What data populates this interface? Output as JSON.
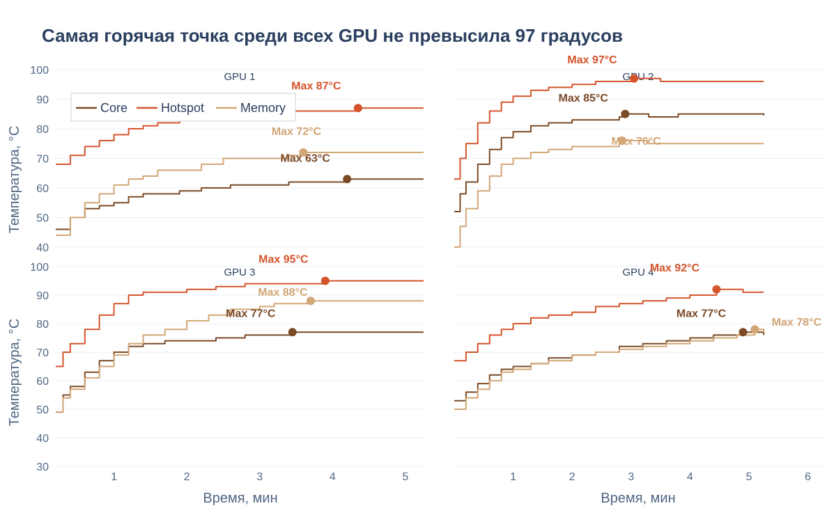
{
  "title": "Самая горячая точка среди всех GPU не превысила 97 градусов",
  "y_axis_title": "Температура, °C",
  "x_axis_title": "Время, мин",
  "colors": {
    "Core": "#7b4a26",
    "Hotspot": "#d4542b",
    "Memory": "#d2a676"
  },
  "legend": [
    "Core",
    "Hotspot",
    "Memory"
  ],
  "chart_data": [
    {
      "type": "line",
      "panel": "GPU 1",
      "xlim": [
        0.2,
        5.25
      ],
      "ylim": [
        40,
        100
      ],
      "x_ticks": [
        1,
        2,
        3,
        4,
        5
      ],
      "y_ticks": [
        40,
        50,
        60,
        70,
        80,
        90,
        100
      ],
      "series": [
        {
          "name": "Core",
          "points": [
            [
              0.2,
              46
            ],
            [
              0.4,
              50
            ],
            [
              0.6,
              53
            ],
            [
              0.8,
              54
            ],
            [
              1.0,
              55
            ],
            [
              1.2,
              57
            ],
            [
              1.4,
              58
            ],
            [
              1.6,
              58
            ],
            [
              1.9,
              59
            ],
            [
              2.2,
              60
            ],
            [
              2.6,
              61
            ],
            [
              3.0,
              61
            ],
            [
              3.4,
              62
            ],
            [
              3.8,
              62
            ],
            [
              4.2,
              63
            ],
            [
              4.6,
              63
            ],
            [
              5.0,
              63
            ],
            [
              5.25,
              63
            ]
          ],
          "max": {
            "x": 4.2,
            "y": 63,
            "label": "Max 63°C"
          }
        },
        {
          "name": "Hotspot",
          "points": [
            [
              0.2,
              68
            ],
            [
              0.4,
              71
            ],
            [
              0.6,
              74
            ],
            [
              0.8,
              76
            ],
            [
              1.0,
              78
            ],
            [
              1.2,
              80
            ],
            [
              1.4,
              81
            ],
            [
              1.6,
              82
            ],
            [
              1.9,
              83
            ],
            [
              2.2,
              84
            ],
            [
              2.6,
              85
            ],
            [
              3.0,
              85
            ],
            [
              3.4,
              86
            ],
            [
              3.8,
              86
            ],
            [
              4.2,
              86
            ],
            [
              4.35,
              87
            ],
            [
              4.6,
              87
            ],
            [
              5.0,
              87
            ],
            [
              5.25,
              87
            ]
          ],
          "max": {
            "x": 4.35,
            "y": 87,
            "label": "Max 87°C"
          }
        },
        {
          "name": "Memory",
          "points": [
            [
              0.2,
              44
            ],
            [
              0.4,
              50
            ],
            [
              0.6,
              55
            ],
            [
              0.8,
              58
            ],
            [
              1.0,
              61
            ],
            [
              1.2,
              63
            ],
            [
              1.4,
              64
            ],
            [
              1.6,
              66
            ],
            [
              1.9,
              66
            ],
            [
              2.2,
              68
            ],
            [
              2.5,
              70
            ],
            [
              3.0,
              70
            ],
            [
              3.4,
              71
            ],
            [
              3.6,
              72
            ],
            [
              4.0,
              72
            ],
            [
              4.5,
              72
            ],
            [
              5.0,
              72
            ],
            [
              5.25,
              72
            ]
          ],
          "max": {
            "x": 3.6,
            "y": 72,
            "label": "Max 72°C"
          }
        }
      ]
    },
    {
      "type": "line",
      "panel": "GPU 2",
      "xlim": [
        0.0,
        6.3
      ],
      "ylim": [
        40,
        100
      ],
      "x_ticks": [
        1,
        2,
        3,
        4,
        5,
        6
      ],
      "y_ticks": [
        40,
        50,
        60,
        70,
        80,
        90,
        100
      ],
      "series": [
        {
          "name": "Core",
          "points": [
            [
              0.0,
              52
            ],
            [
              0.1,
              58
            ],
            [
              0.2,
              62
            ],
            [
              0.4,
              68
            ],
            [
              0.6,
              73
            ],
            [
              0.8,
              77
            ],
            [
              1.0,
              79
            ],
            [
              1.3,
              81
            ],
            [
              1.6,
              82
            ],
            [
              2.0,
              83
            ],
            [
              2.4,
              83
            ],
            [
              2.8,
              84
            ],
            [
              2.9,
              85
            ],
            [
              3.3,
              84
            ],
            [
              3.8,
              85
            ],
            [
              4.5,
              85
            ],
            [
              5.0,
              85
            ],
            [
              5.25,
              84.5
            ]
          ],
          "max": {
            "x": 2.9,
            "y": 85,
            "label": "Max 85°C"
          }
        },
        {
          "name": "Hotspot",
          "points": [
            [
              0.0,
              63
            ],
            [
              0.1,
              70
            ],
            [
              0.2,
              75
            ],
            [
              0.4,
              82
            ],
            [
              0.6,
              86
            ],
            [
              0.8,
              89
            ],
            [
              1.0,
              91
            ],
            [
              1.3,
              93
            ],
            [
              1.6,
              94
            ],
            [
              2.0,
              95
            ],
            [
              2.4,
              96
            ],
            [
              2.8,
              96
            ],
            [
              3.05,
              97
            ],
            [
              3.5,
              96
            ],
            [
              4.0,
              96
            ],
            [
              4.5,
              96
            ],
            [
              5.0,
              96
            ],
            [
              5.25,
              96
            ]
          ],
          "max": {
            "x": 3.05,
            "y": 97,
            "label": "Max 97°C"
          }
        },
        {
          "name": "Memory",
          "points": [
            [
              0.0,
              40
            ],
            [
              0.1,
              47
            ],
            [
              0.2,
              53
            ],
            [
              0.4,
              59
            ],
            [
              0.6,
              64
            ],
            [
              0.8,
              68
            ],
            [
              1.0,
              70
            ],
            [
              1.3,
              72
            ],
            [
              1.6,
              73
            ],
            [
              2.0,
              74
            ],
            [
              2.4,
              74
            ],
            [
              2.8,
              75
            ],
            [
              2.85,
              76
            ],
            [
              3.3,
              75
            ],
            [
              3.8,
              75
            ],
            [
              4.5,
              75
            ],
            [
              5.0,
              75
            ],
            [
              5.25,
              75
            ]
          ],
          "max": {
            "x": 2.85,
            "y": 76,
            "label": "Max 76°C"
          }
        }
      ]
    },
    {
      "type": "line",
      "panel": "GPU 3",
      "xlim": [
        0.2,
        5.25
      ],
      "ylim": [
        30,
        100
      ],
      "x_ticks": [
        1,
        2,
        3,
        4,
        5
      ],
      "y_ticks": [
        30,
        40,
        50,
        60,
        70,
        80,
        90,
        100
      ],
      "series": [
        {
          "name": "Core",
          "points": [
            [
              0.2,
              49
            ],
            [
              0.3,
              55
            ],
            [
              0.4,
              58
            ],
            [
              0.6,
              63
            ],
            [
              0.8,
              67
            ],
            [
              1.0,
              70
            ],
            [
              1.2,
              72
            ],
            [
              1.4,
              73
            ],
            [
              1.7,
              74
            ],
            [
              2.0,
              74
            ],
            [
              2.4,
              75
            ],
            [
              2.8,
              76
            ],
            [
              3.2,
              76
            ],
            [
              3.45,
              77
            ],
            [
              4.0,
              77
            ],
            [
              4.5,
              77
            ],
            [
              5.0,
              77
            ],
            [
              5.25,
              77
            ]
          ],
          "max": {
            "x": 3.45,
            "y": 77,
            "label": "Max 77°C"
          }
        },
        {
          "name": "Hotspot",
          "points": [
            [
              0.2,
              65
            ],
            [
              0.3,
              70
            ],
            [
              0.4,
              73
            ],
            [
              0.6,
              78
            ],
            [
              0.8,
              83
            ],
            [
              1.0,
              87
            ],
            [
              1.2,
              90
            ],
            [
              1.4,
              91
            ],
            [
              1.7,
              91
            ],
            [
              2.0,
              92
            ],
            [
              2.4,
              93
            ],
            [
              2.8,
              94
            ],
            [
              3.2,
              94
            ],
            [
              3.6,
              94
            ],
            [
              3.9,
              95
            ],
            [
              4.4,
              95
            ],
            [
              5.0,
              95
            ],
            [
              5.25,
              95
            ]
          ],
          "max": {
            "x": 3.9,
            "y": 95,
            "label": "Max 95°C"
          }
        },
        {
          "name": "Memory",
          "points": [
            [
              0.2,
              49
            ],
            [
              0.3,
              54
            ],
            [
              0.4,
              57
            ],
            [
              0.6,
              61
            ],
            [
              0.8,
              65
            ],
            [
              1.0,
              69
            ],
            [
              1.2,
              73
            ],
            [
              1.4,
              76
            ],
            [
              1.7,
              78
            ],
            [
              2.0,
              81
            ],
            [
              2.3,
              83
            ],
            [
              2.6,
              85
            ],
            [
              3.0,
              86
            ],
            [
              3.2,
              87
            ],
            [
              3.7,
              88
            ],
            [
              4.2,
              88
            ],
            [
              5.0,
              88
            ],
            [
              5.25,
              88
            ]
          ],
          "max": {
            "x": 3.7,
            "y": 88,
            "label": "Max 88°C"
          }
        }
      ]
    },
    {
      "type": "line",
      "panel": "GPU 4",
      "xlim": [
        0.0,
        6.3
      ],
      "ylim": [
        30,
        100
      ],
      "x_ticks": [
        1,
        2,
        3,
        4,
        5,
        6
      ],
      "y_ticks": [
        30,
        40,
        50,
        60,
        70,
        80,
        90,
        100
      ],
      "series": [
        {
          "name": "Core",
          "points": [
            [
              0.0,
              53
            ],
            [
              0.2,
              56
            ],
            [
              0.4,
              59
            ],
            [
              0.6,
              62
            ],
            [
              0.8,
              64
            ],
            [
              1.0,
              65
            ],
            [
              1.3,
              66
            ],
            [
              1.6,
              68
            ],
            [
              2.0,
              69
            ],
            [
              2.4,
              70
            ],
            [
              2.8,
              72
            ],
            [
              3.2,
              73
            ],
            [
              3.6,
              74
            ],
            [
              4.0,
              75
            ],
            [
              4.4,
              76
            ],
            [
              4.9,
              77
            ],
            [
              5.25,
              76
            ]
          ],
          "max": {
            "x": 4.9,
            "y": 77,
            "label": "Max 77°C"
          }
        },
        {
          "name": "Hotspot",
          "points": [
            [
              0.0,
              67
            ],
            [
              0.2,
              70
            ],
            [
              0.4,
              73
            ],
            [
              0.6,
              76
            ],
            [
              0.8,
              78
            ],
            [
              1.0,
              80
            ],
            [
              1.3,
              82
            ],
            [
              1.6,
              83
            ],
            [
              2.0,
              84
            ],
            [
              2.4,
              86
            ],
            [
              2.8,
              87
            ],
            [
              3.2,
              88
            ],
            [
              3.6,
              89
            ],
            [
              4.0,
              90
            ],
            [
              4.45,
              92
            ],
            [
              4.9,
              91
            ],
            [
              5.25,
              91
            ]
          ],
          "max": {
            "x": 4.45,
            "y": 92,
            "label": "Max 92°C"
          }
        },
        {
          "name": "Memory",
          "points": [
            [
              0.0,
              50
            ],
            [
              0.2,
              54
            ],
            [
              0.4,
              57
            ],
            [
              0.6,
              60
            ],
            [
              0.8,
              63
            ],
            [
              1.0,
              64
            ],
            [
              1.3,
              66
            ],
            [
              1.6,
              67
            ],
            [
              2.0,
              69
            ],
            [
              2.4,
              70
            ],
            [
              2.8,
              71
            ],
            [
              3.2,
              72
            ],
            [
              3.6,
              73
            ],
            [
              4.0,
              74
            ],
            [
              4.4,
              75
            ],
            [
              4.8,
              76
            ],
            [
              5.1,
              78
            ],
            [
              5.25,
              77
            ]
          ],
          "max": {
            "x": 5.1,
            "y": 78,
            "label": "Max 78°C"
          }
        }
      ]
    }
  ]
}
